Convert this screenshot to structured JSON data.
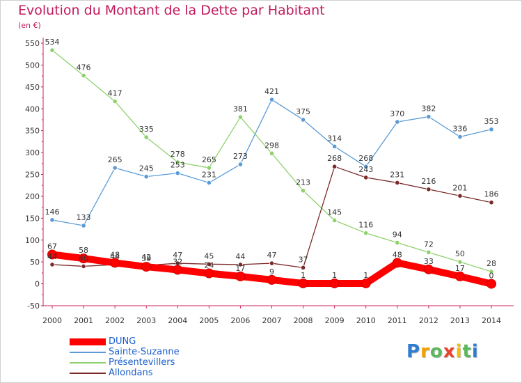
{
  "title": "Evolution du Montant de la Dette par Habitant",
  "unit": "(en €)",
  "brand": "Proxiti",
  "chart_data": {
    "type": "line",
    "x": [
      "2000",
      "2001",
      "2002",
      "2003",
      "2004",
      "2005",
      "2006",
      "2007",
      "2008",
      "2009",
      "2010",
      "2011",
      "2012",
      "2013",
      "2014"
    ],
    "ylim": [
      -50,
      550
    ],
    "yticks": [
      -50,
      0,
      50,
      100,
      150,
      200,
      250,
      300,
      350,
      400,
      450,
      500,
      550
    ],
    "grid": false,
    "legend_position": "bottom-left",
    "series": [
      {
        "name": "DUNG",
        "color": "#ff0000",
        "values": [
          67,
          58,
          48,
          39,
          32,
          24,
          17,
          9,
          1,
          1,
          1,
          48,
          33,
          17,
          0
        ],
        "labels": [
          "67",
          "58",
          "48",
          "39",
          "32",
          "24",
          "17",
          "9",
          "1",
          "1",
          "1",
          "48",
          "33",
          "17",
          "0"
        ]
      },
      {
        "name": "Sainte-Suzanne",
        "color": "#5b9bd5",
        "values": [
          146,
          133,
          265,
          245,
          253,
          231,
          273,
          421,
          375,
          314,
          268,
          370,
          382,
          336,
          353
        ],
        "labels": [
          "146",
          "133",
          "265",
          "245",
          "253",
          "231",
          "273",
          "421",
          "375",
          "314",
          "268",
          "370",
          "382",
          "336",
          "353"
        ]
      },
      {
        "name": "Présentevillers",
        "color": "#8ed16c",
        "values": [
          534,
          476,
          417,
          335,
          278,
          265,
          381,
          298,
          213,
          145,
          116,
          94,
          72,
          50,
          28
        ],
        "labels": [
          "534",
          "476",
          "417",
          "335",
          "278",
          "265",
          "381",
          "298",
          "213",
          "145",
          "116",
          "94",
          "72",
          "50",
          "28"
        ]
      },
      {
        "name": "Allondans",
        "color": "#7a2a2a",
        "values": [
          44,
          40,
          44,
          42,
          47,
          45,
          44,
          47,
          37,
          268,
          243,
          231,
          216,
          201,
          186
        ],
        "labels": [
          "44",
          "40",
          "44",
          "42",
          "47",
          "45",
          "44",
          "47",
          "37",
          "268",
          "243",
          "231",
          "216",
          "201",
          "186"
        ]
      }
    ]
  }
}
